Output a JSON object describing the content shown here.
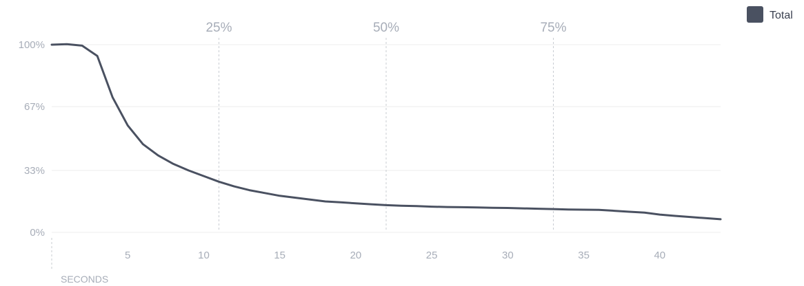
{
  "chart_data": {
    "type": "line",
    "xlabel": "SECONDS",
    "ylabel": "",
    "xlim": [
      0,
      44
    ],
    "ylim": [
      0,
      100
    ],
    "x_ticks": [
      5,
      10,
      15,
      20,
      25,
      30,
      35,
      40
    ],
    "y_ticks": [
      {
        "value": 0,
        "label": "0%"
      },
      {
        "value": 33,
        "label": "33%"
      },
      {
        "value": 67,
        "label": "67%"
      },
      {
        "value": 100,
        "label": "100%"
      }
    ],
    "markers": [
      {
        "label": "25%",
        "x": 11
      },
      {
        "label": "50%",
        "x": 22
      },
      {
        "label": "75%",
        "x": 33
      }
    ],
    "legend_position": "top-right",
    "series": [
      {
        "name": "Total",
        "color": "#4a5161",
        "x": [
          0,
          1,
          2,
          3,
          4,
          5,
          6,
          7,
          8,
          9,
          10,
          11,
          12,
          13,
          14,
          15,
          16,
          17,
          18,
          19,
          20,
          21,
          22,
          23,
          24,
          25,
          26,
          27,
          28,
          29,
          30,
          31,
          32,
          33,
          34,
          35,
          36,
          37,
          38,
          39,
          40,
          41,
          42,
          43,
          44
        ],
        "values": [
          100,
          100.3,
          99.5,
          94,
          72,
          57,
          47,
          41,
          36.5,
          33,
          30,
          27,
          24.5,
          22.5,
          21,
          19.5,
          18.5,
          17.5,
          16.5,
          16,
          15.5,
          15,
          14.5,
          14.2,
          14,
          13.7,
          13.5,
          13.4,
          13.3,
          13.1,
          13,
          12.8,
          12.6,
          12.4,
          12.2,
          12.1,
          12,
          11.5,
          11,
          10.5,
          9.5,
          8.8,
          8.2,
          7.6,
          7
        ]
      }
    ]
  }
}
